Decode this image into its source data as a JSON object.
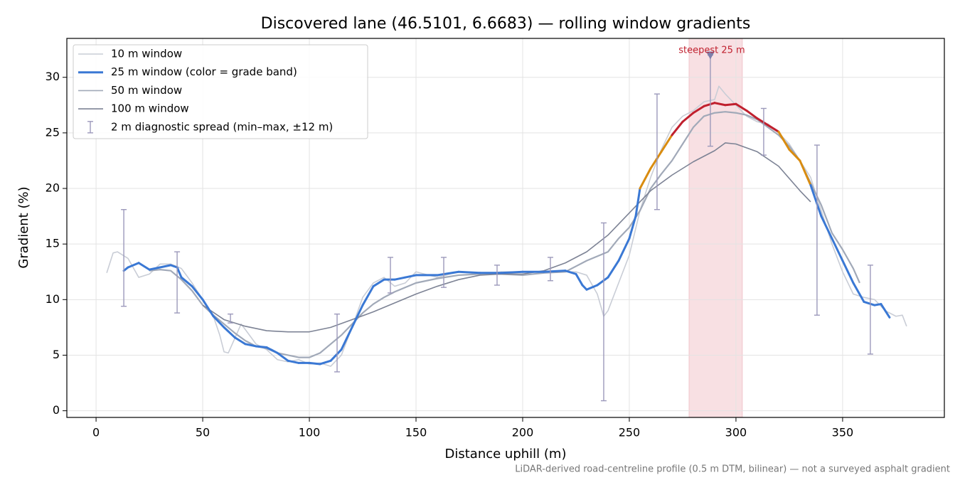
{
  "chart_data": {
    "type": "line",
    "title": "Discovered lane (46.5101, 6.6683) — rolling window gradients",
    "xlabel": "Distance uphill (m)",
    "ylabel": "Gradient (%)",
    "footnote": "LiDAR-derived road-centreline profile (0.5 m DTM, bilinear) — not a surveyed asphalt gradient",
    "xlim": [
      -13.7,
      397.7
    ],
    "ylim": [
      -0.6,
      33.5
    ],
    "xticks": [
      0,
      50,
      100,
      150,
      200,
      250,
      300,
      350
    ],
    "yticks": [
      0,
      5,
      10,
      15,
      20,
      25,
      30
    ],
    "grid": true,
    "legend": "upper left",
    "series": [
      {
        "name": "10 m window",
        "color": "#c9cdd6",
        "x": [
          5,
          8,
          10,
          15,
          20,
          25,
          30,
          35,
          40,
          45,
          50,
          55,
          58,
          60,
          62,
          65,
          68,
          70,
          75,
          80,
          85,
          90,
          95,
          100,
          105,
          110,
          115,
          120,
          125,
          130,
          135,
          140,
          145,
          150,
          160,
          170,
          180,
          190,
          200,
          210,
          220,
          225,
          230,
          235,
          238,
          240,
          245,
          250,
          255,
          260,
          265,
          270,
          275,
          280,
          285,
          290,
          292,
          295,
          300,
          305,
          310,
          315,
          320,
          325,
          330,
          335,
          340,
          345,
          350,
          355,
          360,
          365,
          370,
          375,
          378,
          380
        ],
        "values": [
          12.4,
          14.2,
          14.3,
          13.7,
          12.0,
          12.3,
          13.2,
          13.2,
          12.8,
          11.5,
          10.0,
          8.5,
          6.8,
          5.3,
          5.2,
          6.5,
          7.8,
          7.3,
          6.0,
          5.5,
          4.6,
          4.4,
          4.6,
          4.2,
          4.3,
          4.0,
          5.0,
          7.5,
          10.2,
          11.5,
          12.0,
          11.2,
          11.5,
          12.5,
          12.0,
          12.5,
          12.3,
          12.5,
          12.5,
          12.5,
          12.5,
          12.5,
          12.2,
          10.5,
          8.5,
          9.0,
          11.5,
          14.0,
          18.0,
          21.0,
          23.5,
          25.5,
          26.5,
          27.0,
          27.8,
          28.0,
          29.2,
          28.5,
          27.5,
          26.5,
          26.0,
          25.8,
          25.0,
          24.0,
          22.5,
          21.0,
          18.0,
          15.0,
          12.5,
          10.5,
          10.2,
          10.0,
          9.0,
          8.5,
          8.6,
          7.6
        ]
      },
      {
        "name": "25 m window (color = grade band)",
        "color": "#3a78d4",
        "band_thresholds": [
          20,
          25
        ],
        "band_colors": [
          "#3a78d4",
          "#d98c10",
          "#c0202e"
        ],
        "x": [
          13,
          15,
          20,
          25,
          30,
          35,
          38,
          40,
          45,
          50,
          55,
          60,
          65,
          70,
          75,
          80,
          85,
          90,
          95,
          100,
          105,
          110,
          115,
          120,
          125,
          130,
          135,
          140,
          145,
          150,
          160,
          170,
          180,
          190,
          200,
          210,
          220,
          225,
          228,
          230,
          235,
          240,
          245,
          250,
          253,
          255,
          260,
          265,
          270,
          275,
          280,
          285,
          290,
          295,
          300,
          305,
          310,
          315,
          320,
          325,
          330,
          335,
          340,
          345,
          350,
          355,
          360,
          365,
          368,
          372
        ],
        "values": [
          12.6,
          12.9,
          13.3,
          12.7,
          12.9,
          13.1,
          12.9,
          12.0,
          11.2,
          10.0,
          8.5,
          7.5,
          6.6,
          6.0,
          5.8,
          5.7,
          5.2,
          4.5,
          4.3,
          4.3,
          4.2,
          4.5,
          5.5,
          7.5,
          9.5,
          11.2,
          11.8,
          11.8,
          12.0,
          12.2,
          12.2,
          12.5,
          12.4,
          12.4,
          12.5,
          12.5,
          12.6,
          12.3,
          11.3,
          10.9,
          11.3,
          12.0,
          13.5,
          15.5,
          17.5,
          20.0,
          21.8,
          23.3,
          24.8,
          26.0,
          26.8,
          27.4,
          27.7,
          27.5,
          27.6,
          27.0,
          26.3,
          25.7,
          25.1,
          23.5,
          22.5,
          20.3,
          17.5,
          15.5,
          13.5,
          11.5,
          9.8,
          9.5,
          9.6,
          8.4
        ]
      },
      {
        "name": "50 m window",
        "color": "#a1a9b8",
        "x": [
          25,
          30,
          35,
          40,
          45,
          50,
          55,
          60,
          65,
          70,
          75,
          80,
          85,
          90,
          95,
          100,
          105,
          110,
          115,
          120,
          125,
          130,
          135,
          140,
          145,
          150,
          160,
          170,
          180,
          190,
          200,
          210,
          220,
          225,
          230,
          240,
          245,
          250,
          255,
          260,
          265,
          270,
          275,
          280,
          285,
          290,
          295,
          300,
          305,
          310,
          315,
          320,
          325,
          330,
          335,
          340,
          345,
          350,
          355,
          358
        ],
        "values": [
          12.6,
          12.7,
          12.6,
          11.8,
          10.8,
          9.5,
          8.6,
          7.8,
          7.0,
          6.3,
          5.8,
          5.6,
          5.2,
          5.0,
          4.8,
          4.8,
          5.2,
          6.0,
          6.8,
          7.8,
          8.8,
          9.6,
          10.2,
          10.7,
          11.1,
          11.5,
          11.9,
          12.2,
          12.3,
          12.3,
          12.2,
          12.4,
          12.5,
          13.0,
          13.5,
          14.3,
          15.5,
          16.5,
          18.0,
          20.0,
          21.3,
          22.5,
          24.0,
          25.5,
          26.5,
          26.8,
          26.9,
          26.8,
          26.6,
          26.2,
          25.5,
          24.8,
          23.8,
          22.5,
          20.5,
          18.5,
          16.0,
          14.5,
          12.8,
          11.5
        ]
      },
      {
        "name": "100 m window",
        "color": "#7d8395",
        "x": [
          50,
          60,
          70,
          80,
          90,
          100,
          110,
          120,
          130,
          140,
          150,
          160,
          170,
          180,
          190,
          200,
          210,
          220,
          230,
          240,
          250,
          260,
          270,
          280,
          290,
          295,
          300,
          310,
          320,
          330,
          335
        ],
        "values": [
          9.5,
          8.2,
          7.6,
          7.2,
          7.1,
          7.1,
          7.5,
          8.2,
          8.9,
          9.7,
          10.5,
          11.2,
          11.8,
          12.2,
          12.3,
          12.3,
          12.6,
          13.3,
          14.3,
          15.8,
          17.8,
          19.8,
          21.2,
          22.4,
          23.4,
          24.1,
          24.0,
          23.3,
          22.0,
          19.8,
          18.8
        ]
      }
    ],
    "errorbars": {
      "name": "2 m diagnostic spread (min–max, ±12 m)",
      "color": "#9c99bb",
      "x": [
        13,
        38,
        63,
        113,
        138,
        163,
        188,
        213,
        238,
        263,
        288,
        313,
        338,
        363
      ],
      "low": [
        9.4,
        8.8,
        7.9,
        3.5,
        10.6,
        11.1,
        11.3,
        11.7,
        0.9,
        18.1,
        23.8,
        23.0,
        8.6,
        5.1
      ],
      "high": [
        18.1,
        14.3,
        8.7,
        8.7,
        13.8,
        13.8,
        13.1,
        13.8,
        16.9,
        28.5,
        32.0,
        27.2,
        23.9,
        13.1
      ]
    },
    "highlight": {
      "label": "steepest 25 m",
      "xlim": [
        278,
        303
      ],
      "color": "#f2c6cc",
      "label_color": "#c0202e",
      "marker": [
        288,
        32
      ],
      "marker_color": "#7d7fab"
    }
  }
}
